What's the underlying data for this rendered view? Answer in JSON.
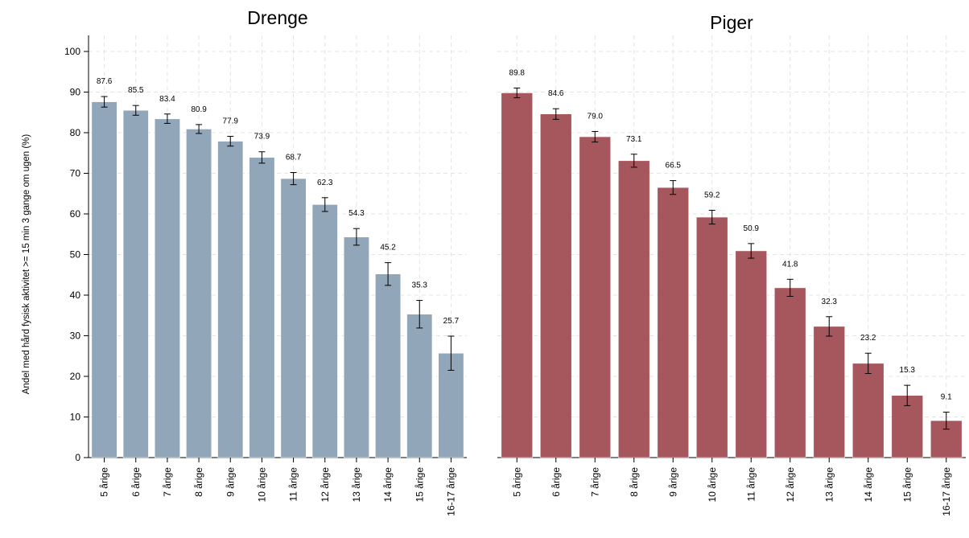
{
  "chart_data": {
    "type": "bar",
    "ylabel": "Andel med hård fysisk aktivitet >= 15 min 3 gange om ugen (%)",
    "ylim": [
      0,
      100
    ],
    "yticks": [
      0,
      10,
      20,
      30,
      40,
      50,
      60,
      70,
      80,
      90,
      100
    ],
    "grid": true,
    "categories": [
      "5 årige",
      "6 årige",
      "7 årige",
      "8 årige",
      "9 årige",
      "10 årige",
      "11 årige",
      "12 årige",
      "13 årige",
      "14 årige",
      "15 årige",
      "16-17 årige"
    ],
    "panels": [
      {
        "title": "Drenge",
        "color": "#91a6b9",
        "values": [
          87.6,
          85.5,
          83.4,
          80.9,
          77.9,
          73.9,
          68.7,
          62.3,
          54.3,
          45.2,
          35.3,
          25.7
        ],
        "value_labels": [
          "87.6",
          "85.5",
          "83.4",
          "80.9",
          "77.9",
          "73.9",
          "68.7",
          "62.3",
          "54.3",
          "45.2",
          "35.3",
          "25.7"
        ],
        "ci_low": [
          86.3,
          84.3,
          82.3,
          79.8,
          76.7,
          72.5,
          67.2,
          60.6,
          52.3,
          42.4,
          31.9,
          21.5
        ],
        "ci_high": [
          88.9,
          86.7,
          84.6,
          82.0,
          79.1,
          75.3,
          70.2,
          64.0,
          56.4,
          48.0,
          38.7,
          29.9
        ]
      },
      {
        "title": "Piger",
        "color": "#a5575d",
        "values": [
          89.8,
          84.6,
          79.0,
          73.1,
          66.5,
          59.2,
          50.9,
          41.8,
          32.3,
          23.2,
          15.3,
          9.1
        ],
        "value_labels": [
          "89.8",
          "84.6",
          "79.0",
          "73.1",
          "66.5",
          "59.2",
          "50.9",
          "41.8",
          "32.3",
          "23.2",
          "15.3",
          "9.1"
        ],
        "ci_low": [
          88.6,
          83.3,
          77.7,
          71.5,
          64.8,
          57.5,
          49.1,
          39.7,
          29.9,
          20.7,
          12.8,
          7.0
        ],
        "ci_high": [
          91.0,
          85.9,
          80.3,
          74.7,
          68.2,
          60.9,
          52.7,
          43.9,
          34.7,
          25.7,
          17.8,
          11.2
        ]
      }
    ]
  }
}
